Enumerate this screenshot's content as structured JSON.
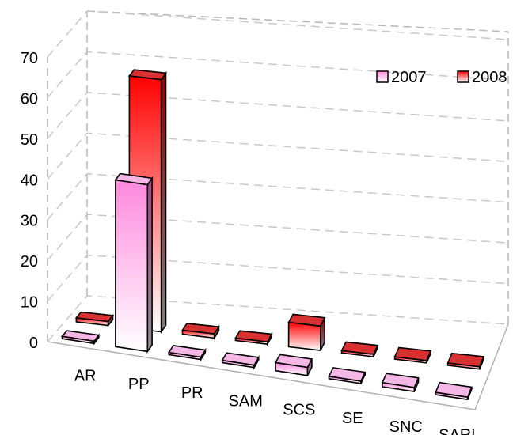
{
  "chart_data": {
    "type": "bar",
    "title": "",
    "xlabel": "",
    "ylabel": "",
    "ylim": [
      0,
      70
    ],
    "yticks": [
      "0",
      "10",
      "20",
      "30",
      "40",
      "50",
      "60",
      "70"
    ],
    "categories": [
      "AR",
      "PP",
      "PR",
      "SAM",
      "SCS",
      "SE",
      "SNC",
      "SARL"
    ],
    "series": [
      {
        "name": "2007",
        "color": "#ff99dd",
        "values": [
          0,
          41,
          0,
          0,
          2,
          0,
          1,
          0
        ]
      },
      {
        "name": "2008",
        "color": "#ff1a1a",
        "values": [
          1,
          62,
          1,
          0,
          6,
          0,
          0,
          0
        ]
      }
    ],
    "legend": "top-right",
    "grid": true,
    "style": "3d-column"
  }
}
